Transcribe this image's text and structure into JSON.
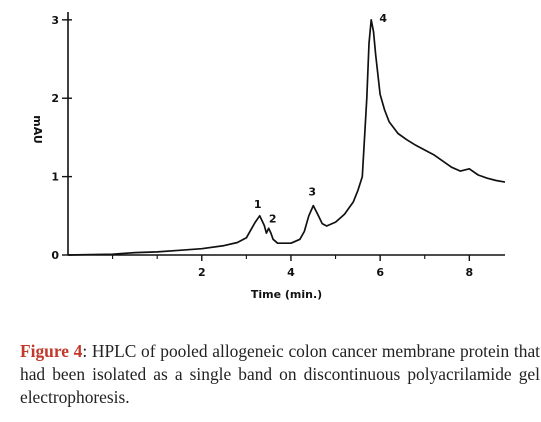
{
  "chart_data": {
    "type": "line",
    "title": "",
    "xlabel": "Time (min.)",
    "ylabel": "mAU",
    "xlim": [
      -1,
      8.8
    ],
    "ylim": [
      0,
      3.1
    ],
    "x_ticks": [
      2,
      4,
      6,
      8
    ],
    "y_ticks": [
      0,
      1,
      2,
      3
    ],
    "grid": false,
    "series": [
      {
        "x": [
          -1.0,
          0.0,
          0.5,
          1.0,
          1.5,
          2.0,
          2.5,
          2.8,
          3.0,
          3.1,
          3.2,
          3.3,
          3.4,
          3.45,
          3.5,
          3.55,
          3.6,
          3.7,
          3.8,
          4.0,
          4.2,
          4.3,
          4.4,
          4.5,
          4.6,
          4.7,
          4.8,
          5.0,
          5.2,
          5.4,
          5.5,
          5.6,
          5.7,
          5.75,
          5.8,
          5.85,
          5.9,
          6.0,
          6.1,
          6.2,
          6.4,
          6.6,
          6.8,
          7.0,
          7.2,
          7.4,
          7.6,
          7.8,
          8.0,
          8.2,
          8.4,
          8.6,
          8.8
        ],
        "y": [
          0.0,
          0.01,
          0.03,
          0.04,
          0.06,
          0.08,
          0.12,
          0.16,
          0.22,
          0.32,
          0.42,
          0.5,
          0.38,
          0.28,
          0.34,
          0.28,
          0.2,
          0.15,
          0.15,
          0.15,
          0.2,
          0.3,
          0.5,
          0.63,
          0.52,
          0.4,
          0.37,
          0.42,
          0.52,
          0.68,
          0.82,
          1.0,
          2.0,
          2.7,
          3.0,
          2.85,
          2.55,
          2.05,
          1.85,
          1.7,
          1.55,
          1.47,
          1.4,
          1.34,
          1.28,
          1.2,
          1.12,
          1.07,
          1.1,
          1.02,
          0.98,
          0.95,
          0.93
        ]
      }
    ],
    "annotations": [
      {
        "text": "1",
        "x": 3.3,
        "y": 0.5
      },
      {
        "text": "2",
        "x": 3.5,
        "y": 0.34
      },
      {
        "text": "3",
        "x": 4.5,
        "y": 0.63
      },
      {
        "text": "4",
        "x": 5.8,
        "y": 3.0
      }
    ]
  },
  "caption": {
    "label": "Figure 4",
    "text": ": HPLC of pooled allogeneic colon cancer membrane protein that had been isolated as a single band on discontinuous polyacrilamide gel electrophoresis."
  }
}
